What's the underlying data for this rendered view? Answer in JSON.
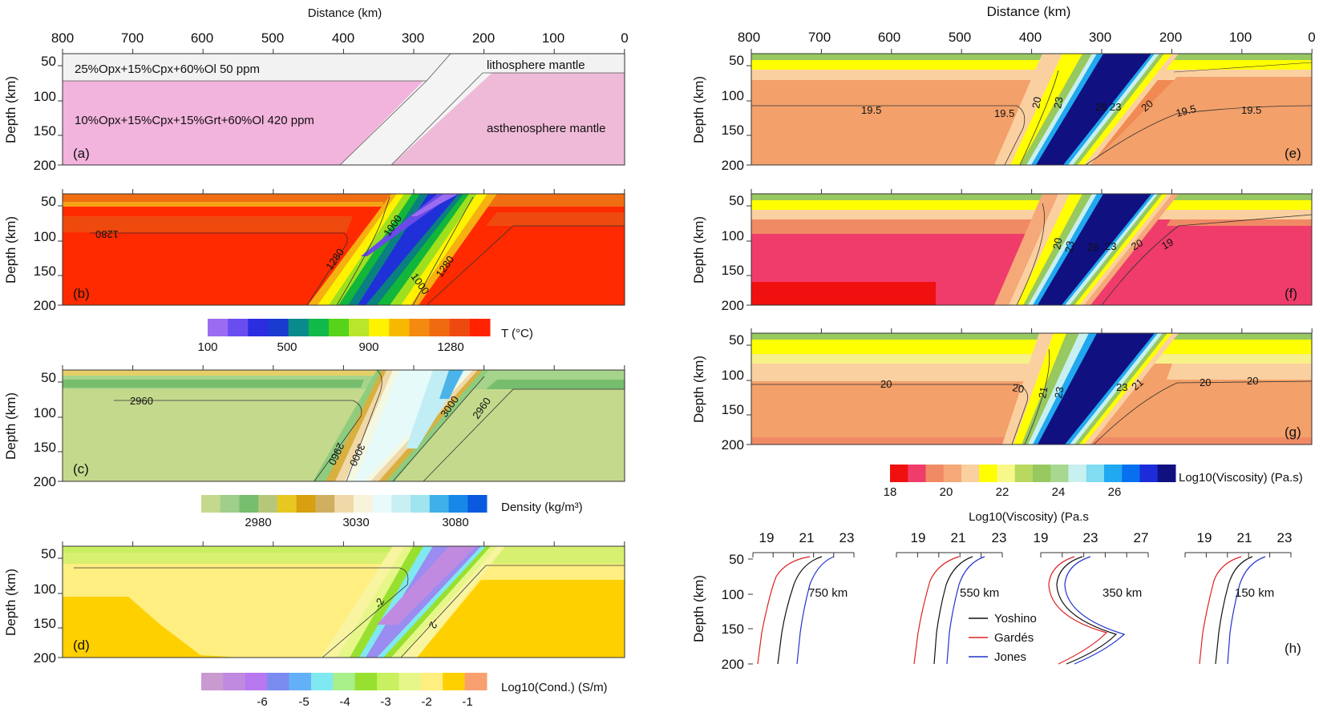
{
  "common": {
    "distance_label": "Distance (km)",
    "depth_label": "Depth (km)",
    "x_ticks": [
      "800",
      "700",
      "600",
      "500",
      "400",
      "300",
      "200",
      "100",
      "0"
    ],
    "y_ticks": [
      "50",
      "100",
      "150",
      "200"
    ]
  },
  "panel_a": {
    "label": "(a)",
    "top_composition": "25%Opx+15%Cpx+60%Ol   50 ppm",
    "bottom_composition": "10%Opx+15%Cpx+15%Grt+60%Ol   420 ppm",
    "litho": "lithosphere mantle",
    "astheno": "asthenosphere mantle"
  },
  "panel_b": {
    "label": "(b)",
    "contours": [
      "1280",
      "1000",
      "1280",
      "1000",
      "1280"
    ],
    "cbar_title": "T (°C)",
    "cbar_ticks": [
      "100",
      "500",
      "900",
      "1280"
    ],
    "cbar_colors": [
      "#9b6cf2",
      "#6a4df0",
      "#2b2ee0",
      "#1a3bd0",
      "#0a8a8a",
      "#11b84a",
      "#55d41a",
      "#b8e62a",
      "#fff200",
      "#f8b800",
      "#f58a10",
      "#f06a10",
      "#ee4a10",
      "#ff2200"
    ]
  },
  "panel_c": {
    "label": "(c)",
    "contours": [
      "2960",
      "2960",
      "3000",
      "3000",
      "2960"
    ],
    "cbar_title": "Density (kg/m³)",
    "cbar_ticks": [
      "2980",
      "3030",
      "3080"
    ],
    "cbar_colors": [
      "#c5d98d",
      "#9fcf8a",
      "#77bd6e",
      "#b7c77a",
      "#e8c820",
      "#d8a010",
      "#d0b060",
      "#f0d8a8",
      "#f8f4dc",
      "#e8fafa",
      "#c8f0f4",
      "#a0e4f0",
      "#40b0e8",
      "#1888e8",
      "#0a5ae0"
    ]
  },
  "panel_d": {
    "label": "(d)",
    "contours": [
      "-2",
      "-2"
    ],
    "cbar_title": "Log10(Cond.) (S/m)",
    "cbar_ticks": [
      "-6",
      "-5",
      "-4",
      "-3",
      "-2",
      "-1"
    ],
    "cbar_colors": [
      "#c89ad0",
      "#c08ae0",
      "#b878f0",
      "#7a8cf0",
      "#64b0f8",
      "#80e8f0",
      "#a8f08a",
      "#98e030",
      "#c8f060",
      "#e6f688",
      "#ffee80",
      "#ffd000",
      "#f8a070"
    ]
  },
  "panel_e": {
    "label": "(e)",
    "contours": [
      "19.5",
      "19.5",
      "20",
      "23",
      "26",
      "23",
      "20",
      "19.5",
      "19.5"
    ]
  },
  "panel_f": {
    "label": "(f)",
    "contours": [
      "20",
      "23",
      "26",
      "23",
      "20",
      "19"
    ]
  },
  "panel_g": {
    "label": "(g)",
    "contours": [
      "20",
      "20",
      "21",
      "23",
      "23",
      "21",
      "20",
      "20"
    ]
  },
  "visc_cbar": {
    "title": "Log10(Viscosity) (Pa.s)",
    "ticks": [
      "18",
      "20",
      "22",
      "24",
      "26"
    ],
    "colors": [
      "#f01010",
      "#f03c6a",
      "#f08a64",
      "#f5a878",
      "#fbd0a0",
      "#ffff00",
      "#f8f888",
      "#b8d860",
      "#98c860",
      "#a8d890",
      "#c8f0f0",
      "#80dcf0",
      "#20a8f0",
      "#0870f0",
      "#1c2cd8",
      "#101080"
    ]
  },
  "panel_h": {
    "label": "(h)",
    "title": "Log10(Viscosity) (Pa.s",
    "profiles": [
      {
        "name": "750 km",
        "ticks": [
          "19",
          "21",
          "23"
        ]
      },
      {
        "name": "550 km",
        "ticks": [
          "19",
          "21",
          "23"
        ]
      },
      {
        "name": "350 km",
        "ticks": [
          "19",
          "23",
          "27"
        ]
      },
      {
        "name": "150 km",
        "ticks": [
          "19",
          "21",
          "23"
        ]
      }
    ],
    "legend": [
      {
        "name": "Yoshino",
        "color": "#111111"
      },
      {
        "name": "Gardés",
        "color": "#dd2222"
      },
      {
        "name": "Jones",
        "color": "#2233cc"
      }
    ]
  }
}
